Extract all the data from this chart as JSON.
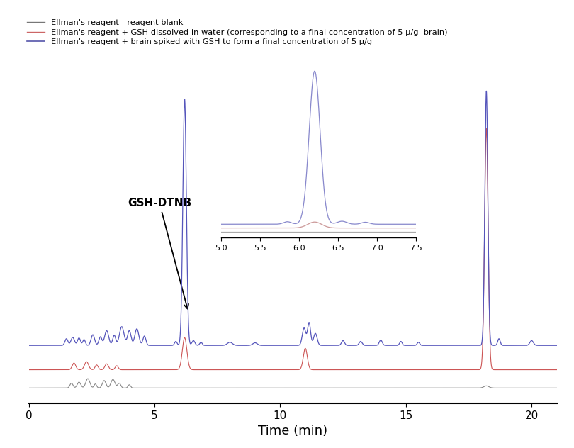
{
  "xlabel": "Time (min)",
  "legend": [
    {
      "label": "Ellman's reagent - reagent blank",
      "color": "#777777",
      "lw": 1.0
    },
    {
      "label": "Ellman's reagent + GSH dissolved in water (corresponding to a final concentration of 5 μ/g  brain)",
      "color": "#cc6666",
      "lw": 1.0
    },
    {
      "label": "Ellman's reagent + brain spiked with GSH to form a final concentration of 5 μ/g",
      "color": "#5555aa",
      "lw": 1.2
    }
  ],
  "background": "#ffffff",
  "gray_color": "#888888",
  "red_color": "#cc5555",
  "blue_color": "#5555bb",
  "inset_blue_color": "#8888cc",
  "inset_red_color": "#cc9999"
}
